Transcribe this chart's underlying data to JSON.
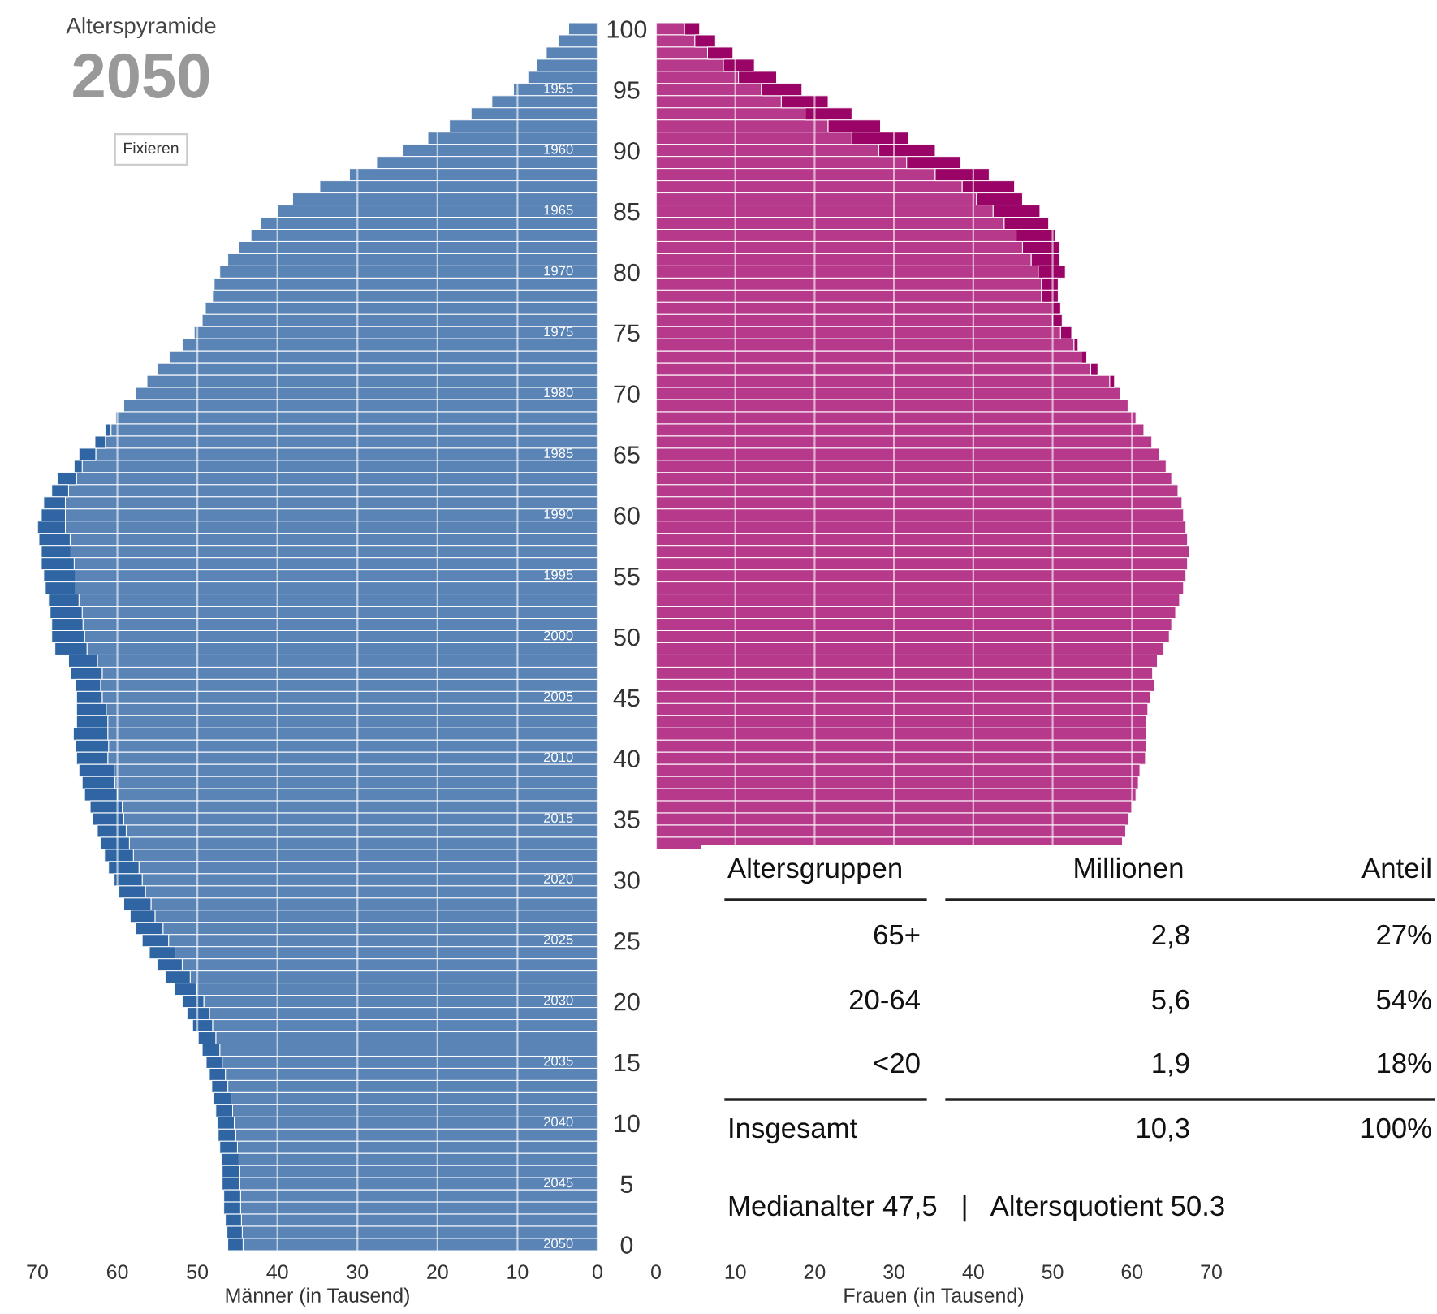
{
  "chart_data": [
    {
      "type": "bar",
      "orientation": "horizontal",
      "stacked": true,
      "title": "Alterspyramide",
      "subtitle": "2050",
      "xlabel": "Männer (in Tausend)",
      "grid": "x",
      "tick_labels": "x",
      "categories": [
        "100",
        null,
        null,
        null,
        null,
        "95",
        null,
        null,
        null,
        null,
        "90",
        null,
        null,
        null,
        null,
        "85",
        null,
        null,
        null,
        null,
        "80",
        null,
        null,
        null,
        null,
        "75",
        null,
        null,
        null,
        null,
        "70",
        null,
        null,
        null,
        null,
        "65",
        null,
        null,
        null,
        null,
        "60",
        null,
        null,
        null,
        null,
        "55",
        null,
        null,
        null,
        null,
        "50",
        null,
        null,
        null,
        null,
        "45",
        null,
        null,
        null,
        null,
        "40",
        null,
        null,
        null,
        null,
        "35",
        null,
        null,
        null,
        null,
        "30",
        null,
        null,
        null,
        null,
        "25",
        null,
        null,
        null,
        null,
        "20",
        null,
        null,
        null,
        null,
        "15",
        null,
        null,
        null,
        null,
        "10",
        null,
        null,
        null,
        null,
        "5",
        null,
        null,
        null,
        null,
        "0"
      ],
      "xlim": [
        70,
        0
      ],
      "xticks": [
        70,
        60,
        50,
        40,
        30,
        20,
        10,
        0
      ],
      "series": [
        {
          "color": "#5a84b6",
          "values": [
            3.6,
            4.9,
            6.4,
            7.6,
            8.7,
            10.5,
            13.2,
            15.8,
            18.5,
            21.2,
            24.4,
            27.6,
            31.0,
            34.7,
            38.1,
            40.0,
            42.1,
            43.3,
            44.8,
            46.2,
            47.2,
            47.9,
            48.1,
            49.0,
            49.4,
            50.4,
            51.9,
            53.5,
            55.0,
            56.3,
            57.7,
            59.2,
            60.2,
            60.8,
            61.5,
            62.7,
            64.4,
            65.1,
            66.1,
            66.5,
            66.5,
            66.5,
            65.9,
            65.8,
            65.4,
            65.2,
            65.2,
            64.8,
            64.4,
            64.3,
            64.1,
            63.8,
            62.5,
            61.9,
            62.1,
            61.9,
            61.4,
            61.2,
            61.2,
            61.1,
            61.2,
            60.4,
            60.3,
            60.0,
            59.4,
            59.2,
            58.9,
            58.5,
            58.0,
            57.3,
            56.9,
            56.5,
            55.8,
            55.3,
            54.3,
            53.6,
            52.8,
            51.9,
            50.9,
            50.1,
            49.2,
            48.5,
            48.1,
            47.7,
            47.2,
            46.9,
            46.5,
            46.2,
            45.8,
            45.6,
            45.4,
            45.2,
            45.0,
            44.8,
            44.7,
            44.7,
            44.6,
            44.6,
            44.5,
            44.4,
            44.3
          ]
        },
        {
          "color": "#2f65a3",
          "values": [
            null,
            null,
            null,
            null,
            null,
            null,
            null,
            null,
            null,
            null,
            null,
            null,
            null,
            null,
            null,
            null,
            null,
            null,
            null,
            null,
            null,
            null,
            null,
            null,
            null,
            null,
            null,
            null,
            null,
            null,
            null,
            null,
            null,
            0.7,
            1.3,
            2.1,
            1.0,
            2.4,
            2.1,
            2.7,
            3.0,
            3.5,
            3.9,
            3.7,
            4.1,
            4.0,
            3.8,
            3.8,
            4.0,
            3.9,
            4.1,
            4.0,
            3.6,
            3.9,
            3.1,
            3.2,
            3.7,
            3.9,
            4.3,
            4.1,
            3.9,
            4.4,
            4.1,
            4.1,
            4.0,
            3.9,
            3.6,
            3.6,
            3.6,
            3.8,
            3.5,
            3.3,
            3.4,
            3.1,
            3.4,
            3.3,
            3.2,
            3.1,
            3.1,
            2.8,
            2.7,
            2.8,
            2.5,
            2.2,
            2.2,
            2.0,
            2.0,
            2.0,
            2.2,
            2.1,
            2.1,
            2.2,
            2.2,
            2.2,
            2.2,
            2.2,
            2.1,
            2.1,
            2.0,
            1.9,
            1.9
          ]
        }
      ],
      "annotations": [
        "Fixieren",
        {
          "text": "1955",
          "y": "95"
        },
        {
          "text": "1960",
          "y": "90"
        },
        {
          "text": "1965",
          "y": "85"
        },
        {
          "text": "1970",
          "y": "80"
        },
        {
          "text": "1975",
          "y": "75"
        },
        {
          "text": "1980",
          "y": "70"
        },
        {
          "text": "1985",
          "y": "65"
        },
        {
          "text": "1990",
          "y": "60"
        },
        {
          "text": "1995",
          "y": "55"
        },
        {
          "text": "2000",
          "y": "50"
        },
        {
          "text": "2005",
          "y": "45"
        },
        {
          "text": "2010",
          "y": "40"
        },
        {
          "text": "2015",
          "y": "35"
        },
        {
          "text": "2020",
          "y": "30"
        },
        {
          "text": "2025",
          "y": "25"
        },
        {
          "text": "2030",
          "y": "20"
        },
        {
          "text": "2035",
          "y": "15"
        },
        {
          "text": "2040",
          "y": "10"
        },
        {
          "text": "2045",
          "y": "5"
        },
        {
          "text": "2050",
          "y": "0"
        }
      ]
    },
    {
      "type": "bar",
      "orientation": "horizontal",
      "stacked": true,
      "xlabel": "Frauen (in Tausend)",
      "grid": "x",
      "categories": [
        "100",
        null,
        null,
        null,
        null,
        "95",
        null,
        null,
        null,
        null,
        "90",
        null,
        null,
        null,
        null,
        "85",
        null,
        null,
        null,
        null,
        "80",
        null,
        null,
        null,
        null,
        "75",
        null,
        null,
        null,
        null,
        "70",
        null,
        null,
        null,
        null,
        "65",
        null,
        null,
        null,
        null,
        "60",
        null,
        null,
        null,
        null,
        "55",
        null,
        null,
        null,
        null,
        "50",
        null,
        null,
        null,
        null,
        "45",
        null,
        null,
        null,
        null,
        "40",
        null,
        null,
        null,
        null,
        "35",
        null,
        null,
        null,
        null,
        "30",
        null,
        null,
        null,
        null,
        "25",
        null,
        null,
        null,
        null,
        "20",
        null,
        null,
        null,
        null,
        "15",
        null,
        null,
        null,
        null,
        "10",
        null,
        null,
        null,
        null,
        "5",
        null,
        null,
        null,
        null,
        "0"
      ],
      "xlim": [
        0,
        70
      ],
      "xticks": [
        0,
        10,
        20,
        30,
        40,
        50,
        60,
        70
      ],
      "series": [
        {
          "color": "#b6398c",
          "values": [
            3.6,
            4.9,
            6.5,
            8.5,
            10.4,
            13.3,
            15.8,
            18.8,
            21.7,
            24.7,
            28.1,
            31.6,
            35.2,
            38.6,
            40.4,
            42.5,
            43.9,
            45.4,
            46.2,
            47.3,
            48.2,
            48.6,
            48.6,
            49.8,
            50.0,
            51.0,
            52.7,
            53.6,
            54.8,
            57.2,
            58.5,
            59.5,
            60.5,
            61.5,
            62.5,
            63.5,
            64.3,
            65.0,
            65.8,
            66.3,
            66.5,
            66.8,
            67.0,
            67.2,
            67.0,
            66.8,
            66.5,
            66.0,
            65.5,
            65.0,
            64.7,
            64.0,
            63.2,
            62.6,
            62.8,
            62.3,
            62.0,
            61.8,
            61.8,
            61.8,
            61.7,
            61.0,
            60.8,
            60.5,
            60.0,
            59.6,
            59.2,
            58.8,
            null,
            null,
            null,
            null,
            null,
            null,
            null,
            null,
            null,
            null,
            null,
            null,
            null,
            null,
            null,
            null,
            null,
            null,
            null,
            null,
            null,
            null,
            null,
            null,
            null,
            null,
            null,
            null,
            null,
            null,
            null,
            null,
            null
          ]
        },
        {
          "color": "#9a0466",
          "values": [
            1.9,
            2.6,
            3.2,
            3.9,
            4.8,
            5.1,
            5.9,
            5.9,
            6.6,
            7.1,
            7.1,
            6.8,
            6.8,
            6.6,
            5.8,
            5.9,
            5.6,
            4.9,
            4.7,
            3.6,
            3.4,
            2.1,
            2.1,
            1.2,
            1.2,
            1.4,
            0.5,
            0.7,
            0.9,
            0.6,
            null,
            null,
            null,
            null,
            null,
            null,
            null,
            null,
            null,
            null,
            null,
            null,
            null,
            null,
            null,
            null,
            null,
            null,
            null,
            null,
            null,
            null,
            null,
            null,
            null,
            null,
            null,
            null,
            null,
            null,
            null,
            null,
            null,
            null,
            null,
            null,
            null,
            null,
            null,
            null,
            null,
            null,
            null,
            null,
            null,
            null,
            null,
            null,
            null,
            null,
            null,
            null,
            null,
            null,
            null,
            null,
            null,
            null,
            null,
            null,
            null,
            null,
            null,
            null,
            null,
            null,
            null,
            null,
            null,
            null,
            null
          ]
        }
      ]
    },
    {
      "type": "other",
      "annotations": [
        "Altersgruppen",
        "Millionen",
        "Anteil",
        "65+",
        "2,8",
        "27%",
        "20-64",
        "5,6",
        "54%",
        "<20",
        "1,9",
        "18%",
        "Insgesamt",
        "10,3",
        "100%",
        "Medianalter 47,5   |   Altersquotient 50.3"
      ]
    }
  ]
}
